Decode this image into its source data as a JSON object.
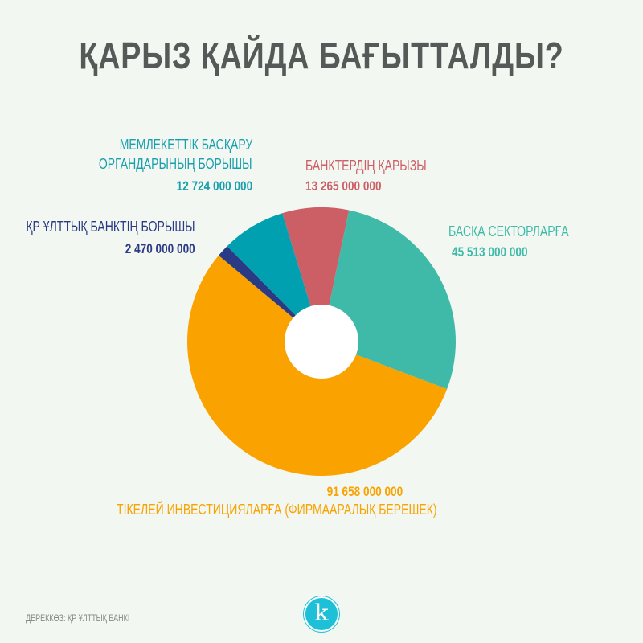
{
  "chart_data": {
    "type": "pie",
    "title": "ҚАРЫЗ ҚАЙДА БАҒЫТТАЛДЫ?",
    "donut": true,
    "slices": [
      {
        "label": "БАНКТЕРДІҢ ҚАРЫЗЫ",
        "value": 13265000000,
        "value_label": "13 265 000 000",
        "color": "#cc5e66"
      },
      {
        "label": "БАСҚА СЕКТОРЛАРҒА",
        "value": 45513000000,
        "value_label": "45 513 000 000",
        "color": "#3fbaa8"
      },
      {
        "label": "ТІКЕЛЕЙ ИНВЕСТИЦИЯЛАРҒА (ФИРМААРАЛЫҚ БЕРЕШЕК)",
        "value": 91658000000,
        "value_label": "91 658 000 000",
        "color": "#f9a200"
      },
      {
        "label": "ҚР ҰЛТТЫҚ БАНКТІҢ БОРЫШЫ",
        "value": 2470000000,
        "value_label": "2 470 000 000",
        "color": "#2b3a84"
      },
      {
        "label_lines": [
          "МЕМЛЕКЕТТІК БАСҚАРУ",
          "ОРГАНДАРЫНЫҢ БОРЫШЫ"
        ],
        "label": "МЕМЛЕКЕТТІК БАСҚАРУ ОРГАНДАРЫНЫҢ БОРЫШЫ",
        "value": 12724000000,
        "value_label": "12 724 000 000",
        "color": "#00a0b0"
      }
    ]
  },
  "source": "ДЕРЕККӨЗ: ҚР ҰЛТТЫҚ БАНКІ",
  "logo_letter": "k"
}
